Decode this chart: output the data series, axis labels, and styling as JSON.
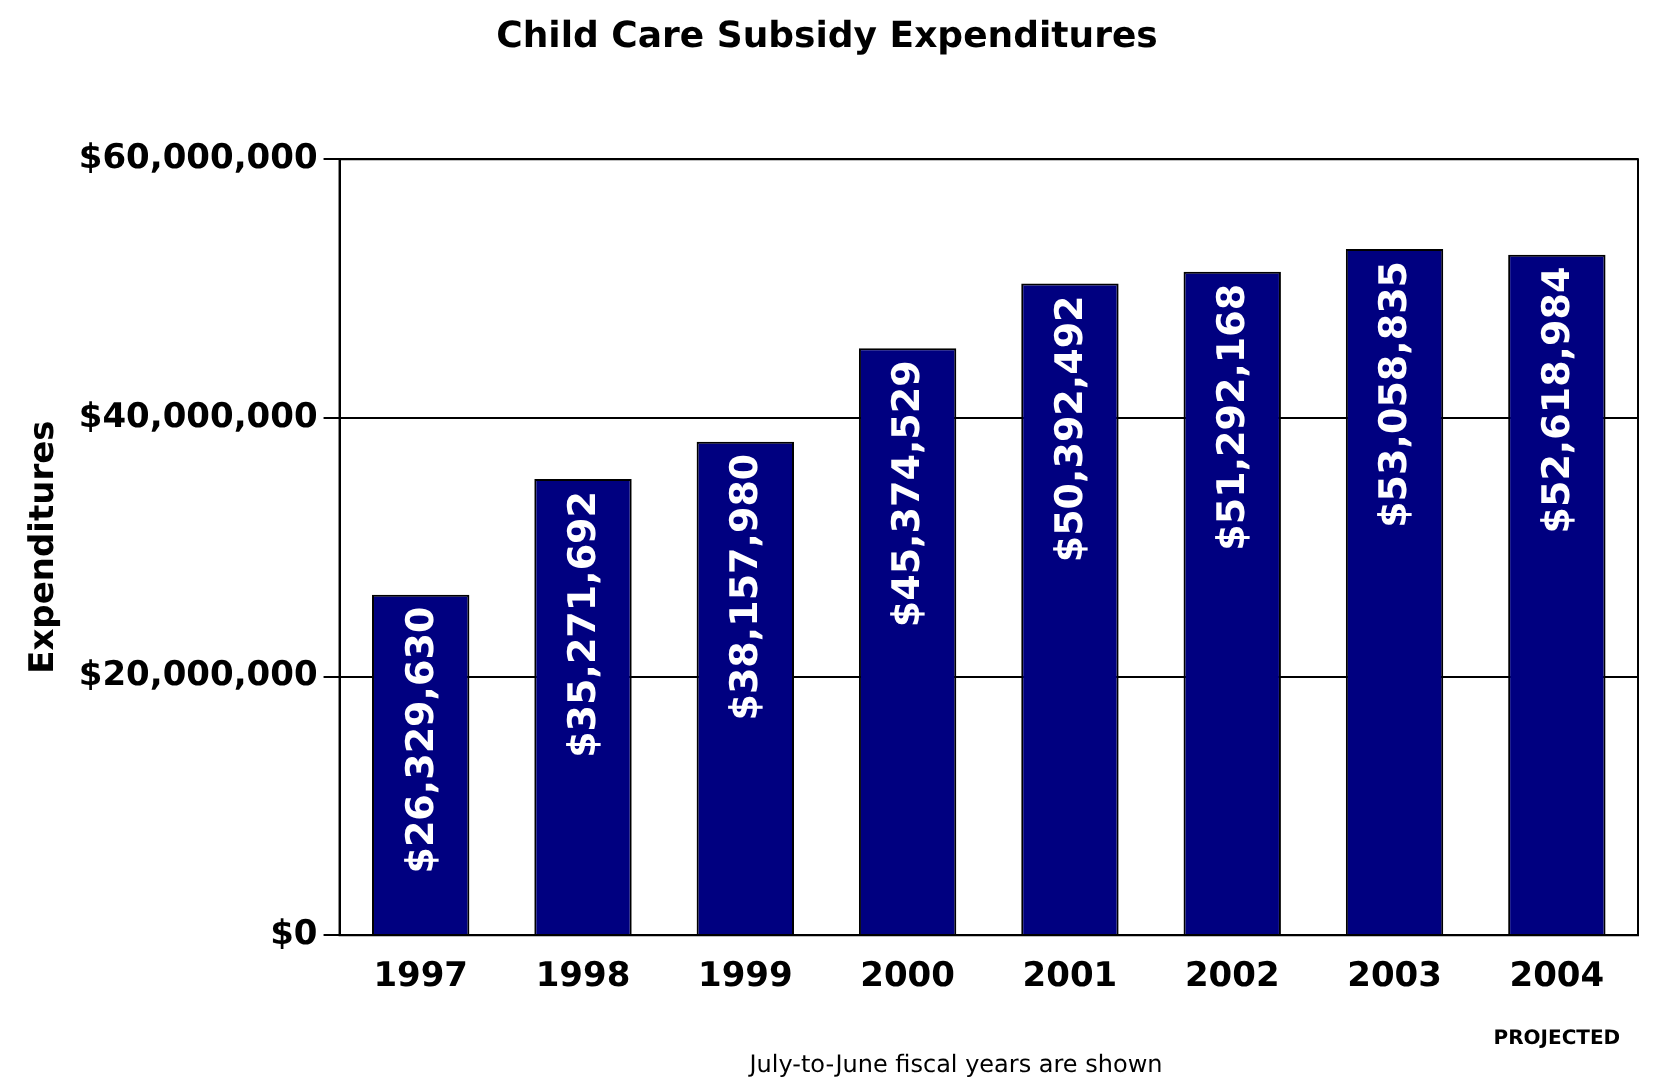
{
  "chart_data": {
    "type": "bar",
    "title": "Child Care Subsidy Expenditures",
    "ylabel": "Expenditures",
    "categories": [
      "1997",
      "1998",
      "1999",
      "2000",
      "2001",
      "2002",
      "2003",
      "2004"
    ],
    "values": [
      26329630,
      35271692,
      38157980,
      45374529,
      50392492,
      51292168,
      53058835,
      52618984
    ],
    "value_labels": [
      "$26,329,630",
      "$35,271,692",
      "$38,157,980",
      "$45,374,529",
      "$50,392,492",
      "$51,292,168",
      "$53,058,835",
      "$52,618,984"
    ],
    "color": "#000080",
    "ylim": [
      0,
      60000000
    ],
    "yticks": [
      {
        "value": 0,
        "label": "$0"
      },
      {
        "value": 20000000,
        "label": "$20,000,000"
      },
      {
        "value": 40000000,
        "label": "$40,000,000"
      },
      {
        "value": 60000000,
        "label": "$60,000,000"
      }
    ],
    "grid": "y",
    "legend": false,
    "annotations": [
      "PROJECTED",
      "July-to-June fiscal years are shown"
    ]
  }
}
